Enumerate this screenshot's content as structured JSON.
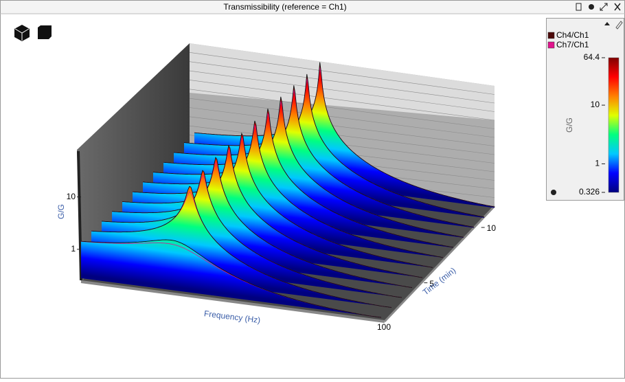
{
  "window": {
    "title": "Transmissibility (reference = Ch1)"
  },
  "chart_data": {
    "type": "waterfall",
    "xlabel": "Frequency (Hz)",
    "xticks": [
      100
    ],
    "ylabel": "Time (min)",
    "ylim": [
      1.5,
      11.4
    ],
    "yticks": [
      5,
      10
    ],
    "times": [
      1.5,
      2.4,
      3.3,
      4.2,
      5.1,
      6,
      6.9,
      7.8,
      8.7,
      9.6,
      10.5,
      11.4
    ],
    "zlabel": "G/G",
    "zlim": [
      0.28,
      64.4
    ],
    "zticks": [
      1,
      10
    ],
    "series": [
      {
        "name": "Ch4/Ch1",
        "color": "#4d0a0a",
        "values": [
          2.2,
          18,
          24,
          28,
          31,
          35,
          40,
          45,
          50,
          54,
          58,
          64.4
        ]
      },
      {
        "name": "Ch7/Ch1",
        "color": "#e0148c",
        "values": [
          1.8,
          14,
          19,
          22,
          25,
          28,
          32,
          36,
          40,
          43,
          46,
          50
        ]
      }
    ],
    "colorbar": {
      "label": "G/G",
      "lim": [
        0.326,
        64.4
      ],
      "ticks": [
        0.326,
        1,
        10,
        64.4
      ]
    },
    "colormap": [
      "#00007f",
      "#0000ff",
      "#00c8ff",
      "#00ff80",
      "#e0ff00",
      "#ff8000",
      "#ff0000",
      "#7f0000"
    ]
  }
}
